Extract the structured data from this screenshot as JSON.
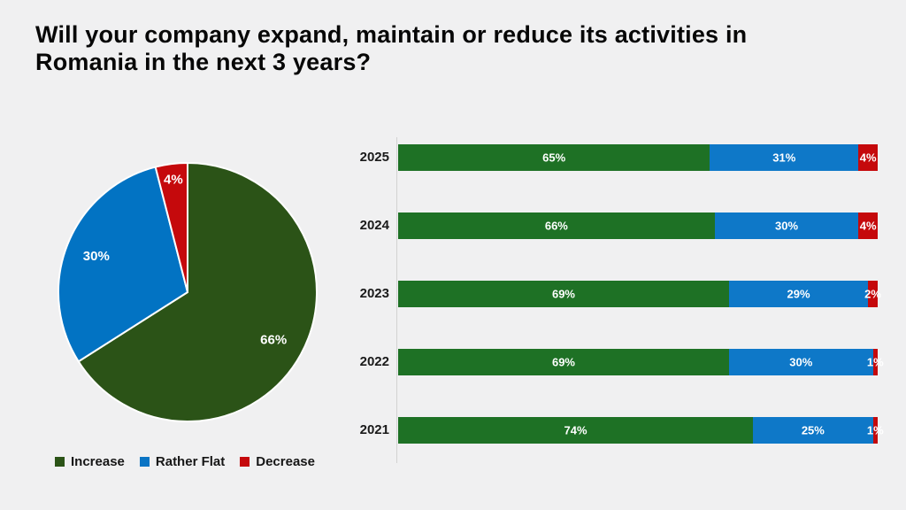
{
  "slide": {
    "title_lines": [
      "Will your company expand, maintain or reduce its activities in",
      "Romania in the next 3 years?"
    ]
  },
  "legend": {
    "items": [
      {
        "label": "Increase",
        "color": "#2b5317"
      },
      {
        "label": "Rather Flat",
        "color": "#0a74c4"
      },
      {
        "label": "Decrease",
        "color": "#c5090c"
      }
    ]
  },
  "colors": {
    "background": "#f0f0f1",
    "pie_increase": "#2b5317",
    "bar_increase": "#1e7125",
    "rather_flat": "#0a74c4",
    "decrease": "#c5090c",
    "axis_line": "#d2d2d2",
    "value_label_text": "#ffffff"
  },
  "chart_data": [
    {
      "type": "pie",
      "title": "",
      "labels": [
        "Increase",
        "Rather Flat",
        "Decrease"
      ],
      "values": [
        66,
        30,
        4
      ],
      "value_labels": [
        "66%",
        "30%",
        "4%"
      ],
      "colors": [
        "#2b5317",
        "#0273c3",
        "#c5090c"
      ],
      "start_angle_deg": 0,
      "direction": "clockwise",
      "legend_position": "bottom-left"
    },
    {
      "type": "bar",
      "orientation": "horizontal",
      "stacked": true,
      "categories": [
        "2025",
        "2024",
        "2023",
        "2022",
        "2021"
      ],
      "series": [
        {
          "name": "Increase",
          "color": "#1e7125",
          "values": [
            65,
            66,
            69,
            69,
            74
          ]
        },
        {
          "name": "Rather Flat",
          "color": "#0e78c8",
          "values": [
            31,
            30,
            29,
            30,
            25
          ]
        },
        {
          "name": "Decrease",
          "color": "#c5090c",
          "values": [
            4,
            4,
            2,
            1,
            1
          ]
        }
      ],
      "xlim": [
        0,
        100
      ],
      "value_label_format": "percent",
      "grid": false
    }
  ]
}
